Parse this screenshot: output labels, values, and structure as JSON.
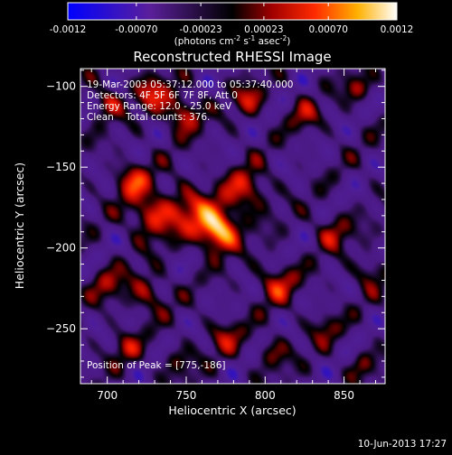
{
  "colorbar": {
    "min": -0.0012,
    "max": 0.0012,
    "tick_labels": [
      "-0.0012",
      "-0.00070",
      "-0.00023",
      "0.00023",
      "0.00070",
      "0.0012"
    ],
    "tick_values": [
      -0.0012,
      -0.0007,
      -0.00023,
      0.00023,
      0.0007,
      0.0012
    ],
    "unit_prefix": "(photons cm",
    "unit_exp1": "-2",
    "unit_mid": " s",
    "unit_exp2": "-1",
    "unit_mid2": " asec",
    "unit_exp3": "-2",
    "unit_suffix": ")",
    "colormap": "blue-purple-black-red-orange-yellow-white"
  },
  "chart_data": {
    "type": "heatmap",
    "title": "Reconstructed RHESSI Image",
    "xlabel": "Heliocentric X (arcsec)",
    "ylabel": "Heliocentric Y (arcsec)",
    "xlim": [
      683,
      876
    ],
    "ylim": [
      -284,
      -89
    ],
    "xticks": [
      700,
      750,
      800,
      850
    ],
    "yticks": [
      -250,
      -200,
      -150,
      -100
    ],
    "xtick_labels": [
      "700",
      "750",
      "800",
      "850"
    ],
    "ytick_labels": [
      "−250",
      "−200",
      "−150",
      "−100"
    ],
    "peak": {
      "x": 775,
      "y": -186
    },
    "annotations": [
      "19-Mar-2003 05:37:12.000 to 05:37:40.000",
      "Detectors: 4F 5F 6F 7F 8F, Att 0",
      "Energy Range: 12.0 - 25.0 keV",
      "Clean    Total counts: 376."
    ],
    "peak_label": "Position of Peak = [775,-186]",
    "sources": [
      {
        "x": 770,
        "y": -189,
        "amp": 1.0,
        "w": 9
      },
      {
        "x": 752,
        "y": -176,
        "amp": 0.45,
        "w": 11
      },
      {
        "x": 788,
        "y": -165,
        "amp": 0.5,
        "w": 10
      },
      {
        "x": 728,
        "y": -180,
        "amp": 0.55,
        "w": 10
      },
      {
        "x": 716,
        "y": -158,
        "amp": 0.5,
        "w": 8
      },
      {
        "x": 700,
        "y": -110,
        "amp": 0.45,
        "w": 7
      },
      {
        "x": 729,
        "y": -104,
        "amp": 0.5,
        "w": 8
      },
      {
        "x": 748,
        "y": -117,
        "amp": 0.55,
        "w": 8
      },
      {
        "x": 790,
        "y": -108,
        "amp": 0.45,
        "w": 7
      },
      {
        "x": 825,
        "y": -118,
        "amp": 0.35,
        "w": 7
      },
      {
        "x": 858,
        "y": -101,
        "amp": 0.4,
        "w": 6
      },
      {
        "x": 843,
        "y": -190,
        "amp": 0.4,
        "w": 8
      },
      {
        "x": 808,
        "y": -222,
        "amp": 0.45,
        "w": 9
      },
      {
        "x": 725,
        "y": -228,
        "amp": 0.4,
        "w": 9
      },
      {
        "x": 700,
        "y": -222,
        "amp": 0.35,
        "w": 8
      },
      {
        "x": 712,
        "y": -262,
        "amp": 0.35,
        "w": 7
      },
      {
        "x": 745,
        "y": -270,
        "amp": 0.3,
        "w": 7
      },
      {
        "x": 775,
        "y": -255,
        "amp": 0.35,
        "w": 8
      },
      {
        "x": 805,
        "y": -265,
        "amp": 0.35,
        "w": 7
      },
      {
        "x": 838,
        "y": -250,
        "amp": 0.3,
        "w": 7
      },
      {
        "x": 862,
        "y": -272,
        "amp": 0.3,
        "w": 6
      },
      {
        "x": 866,
        "y": -215,
        "amp": 0.35,
        "w": 7
      }
    ]
  },
  "timestamp": "10-Jun-2013 17:27"
}
